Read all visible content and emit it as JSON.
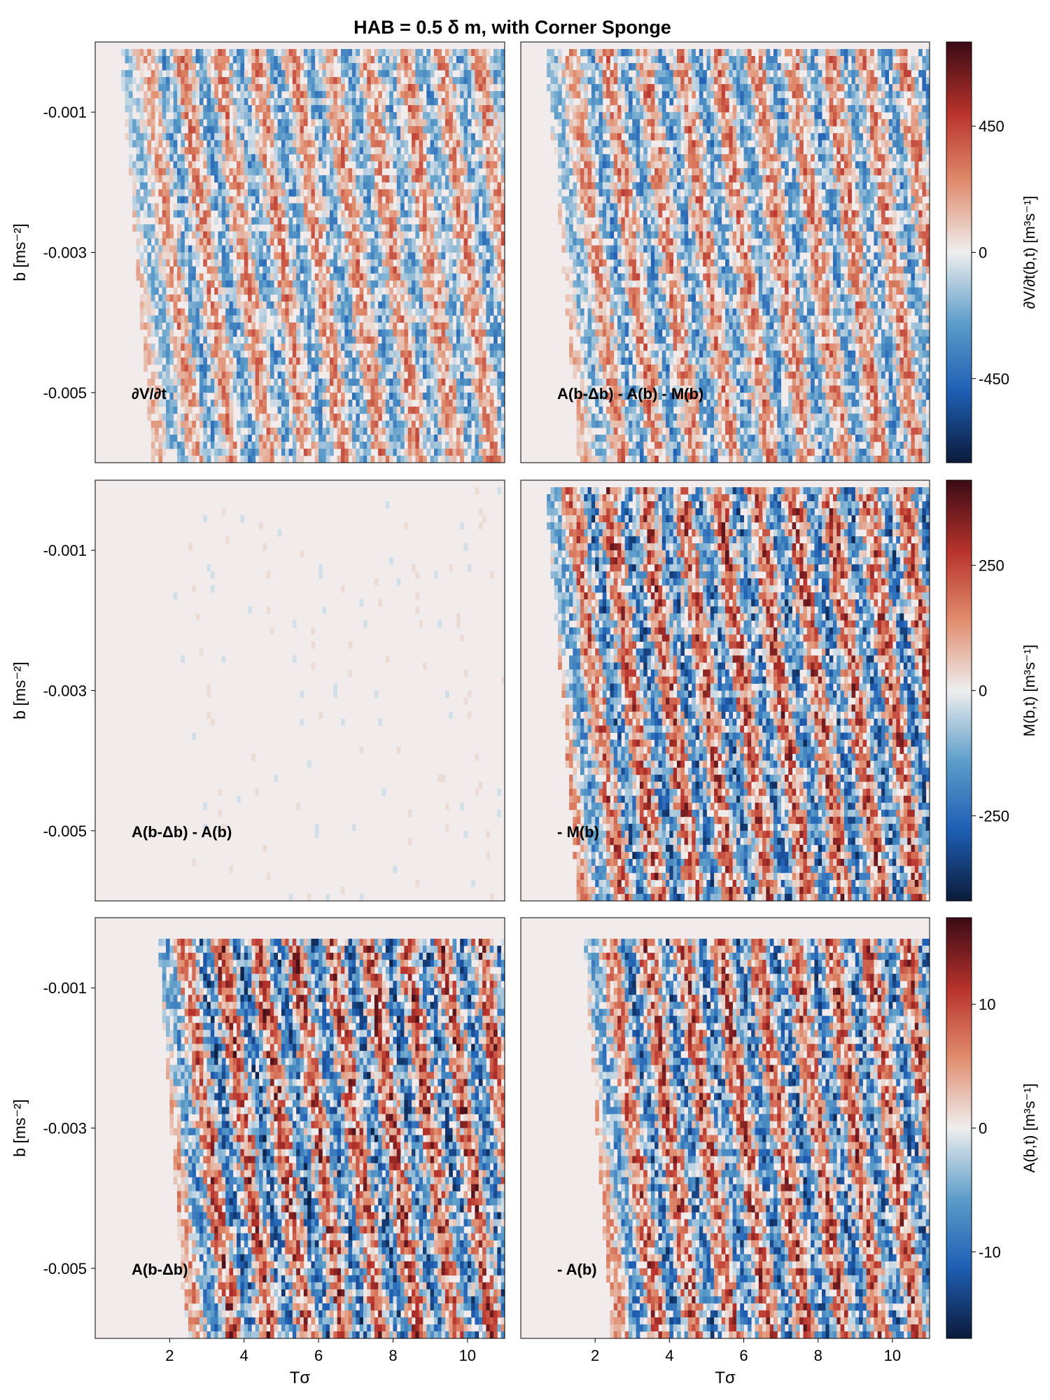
{
  "figure": {
    "title": "HAB = 0.5 δ m, with Corner Sponge",
    "ylabel": "b [ms⁻²]",
    "xlabel": "Tσ"
  },
  "chart_data": [
    {
      "type": "heatmap",
      "panel": "row1-left",
      "annotation": "∂V/∂t",
      "xlabel": "",
      "ylabel": "b [ms⁻²]",
      "x_ticks": [
        2,
        4,
        6,
        8,
        10
      ],
      "y_ticks": [
        -0.001,
        -0.003,
        -0.005
      ],
      "y_tick_labels": [
        "-0.001",
        "-0.003",
        "-0.005"
      ],
      "xlim": [
        0,
        11
      ],
      "ylim": [
        -0.006,
        0.0
      ],
      "colorbar_group": 0,
      "intensity": 0.55
    },
    {
      "type": "heatmap",
      "panel": "row1-right",
      "annotation": "A(b-Δb) - A(b) - M(b)",
      "xlabel": "",
      "xlim": [
        0,
        11
      ],
      "ylim": [
        -0.006,
        0.0
      ],
      "colorbar_group": 0,
      "intensity": 0.6
    },
    {
      "type": "heatmap",
      "panel": "row2-left",
      "annotation": "A(b-Δb) - A(b)",
      "xlabel": "",
      "ylabel": "b [ms⁻²]",
      "y_ticks": [
        -0.001,
        -0.003,
        -0.005
      ],
      "y_tick_labels": [
        "-0.001",
        "-0.003",
        "-0.005"
      ],
      "xlim": [
        0,
        11
      ],
      "ylim": [
        -0.006,
        0.0
      ],
      "colorbar_group": 1,
      "intensity": 0.06
    },
    {
      "type": "heatmap",
      "panel": "row2-right",
      "annotation": "- M(b)",
      "xlabel": "",
      "xlim": [
        0,
        11
      ],
      "ylim": [
        -0.006,
        0.0
      ],
      "colorbar_group": 1,
      "intensity": 0.85
    },
    {
      "type": "heatmap",
      "panel": "row3-left",
      "annotation": "A(b-Δb)",
      "xlabel": "Tσ",
      "ylabel": "b [ms⁻²]",
      "x_ticks": [
        2,
        4,
        6,
        8,
        10
      ],
      "y_ticks": [
        -0.001,
        -0.003,
        -0.005
      ],
      "y_tick_labels": [
        "-0.001",
        "-0.003",
        "-0.005"
      ],
      "xlim": [
        0,
        11
      ],
      "ylim": [
        -0.006,
        0.0
      ],
      "colorbar_group": 2,
      "intensity": 0.9
    },
    {
      "type": "heatmap",
      "panel": "row3-right",
      "annotation": "- A(b)",
      "xlabel": "Tσ",
      "x_ticks": [
        2,
        4,
        6,
        8,
        10
      ],
      "xlim": [
        0,
        11
      ],
      "ylim": [
        -0.006,
        0.0
      ],
      "colorbar_group": 2,
      "intensity": 0.85
    }
  ],
  "colorbars": [
    {
      "label": "∂V/∂t(b,t) [m³s⁻¹]",
      "range": [
        -750,
        750
      ],
      "ticks": [
        450,
        0,
        -450
      ],
      "tick_labels": [
        "450",
        "0",
        "-450"
      ]
    },
    {
      "label": "M(b,t) [m³s⁻¹]",
      "range": [
        -420,
        420
      ],
      "ticks": [
        250,
        0,
        -250
      ],
      "tick_labels": [
        "250",
        "0",
        "-250"
      ]
    },
    {
      "label": "A(b,t) [m³s⁻¹]",
      "range": [
        -17,
        17
      ],
      "ticks": [
        10,
        0,
        -10
      ],
      "tick_labels": [
        "10",
        "0",
        "-10"
      ]
    }
  ],
  "colormap": [
    "#0b1b3b",
    "#1f5fb4",
    "#5b9cc9",
    "#eeeeee",
    "#e08b6c",
    "#b8332c",
    "#3b0b16"
  ],
  "background_color": "#f1ebeb"
}
